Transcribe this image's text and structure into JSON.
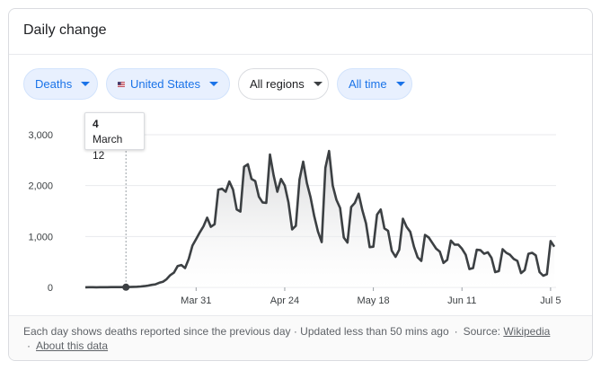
{
  "card": {
    "title": "Daily change"
  },
  "filters": {
    "metric": "Deaths",
    "country": "United States",
    "region": "All regions",
    "time": "All time"
  },
  "tooltip": {
    "value": "4",
    "date": "March 12"
  },
  "footer": {
    "description": "Each day shows deaths reported since the previous day · Updated less than 50 mins ago",
    "source_prefix": "Source:",
    "source_link": "Wikipedia",
    "about_link": "About this data",
    "separator": "·"
  },
  "colors": {
    "line": "#3c4043",
    "grid": "#e8eaed",
    "chip_blue": "#1a73e8"
  },
  "chart_data": {
    "type": "area",
    "title": "",
    "xlabel": "",
    "ylabel": "",
    "ylim": [
      0,
      3000
    ],
    "yticks": [
      0,
      1000,
      2000,
      3000
    ],
    "ytick_labels": [
      "0",
      "1,000",
      "2,000",
      "3,000"
    ],
    "x_start": "Mar 1",
    "xticks": [
      {
        "day": 30,
        "label": "Mar 31"
      },
      {
        "day": 54,
        "label": "Apr 24"
      },
      {
        "day": 78,
        "label": "May 18"
      },
      {
        "day": 102,
        "label": "Jun 11"
      },
      {
        "day": 126,
        "label": "Jul 5"
      }
    ],
    "highlight": {
      "day": 11,
      "value": 4,
      "label": "March 12"
    },
    "series": [
      {
        "x": [
          0,
          1,
          2,
          3,
          4,
          5,
          6,
          7,
          8,
          9,
          10,
          11,
          12,
          13,
          14,
          15,
          16,
          17,
          18,
          19,
          20,
          21,
          22,
          23,
          24,
          25,
          26,
          27,
          28,
          29,
          30,
          31,
          32,
          33,
          34,
          35,
          36,
          37,
          38,
          39,
          40,
          41,
          42,
          43,
          44,
          45,
          46,
          47,
          48,
          49,
          50,
          51,
          52,
          53,
          54,
          55,
          56,
          57,
          58,
          59,
          60,
          61,
          62,
          63,
          64,
          65,
          66,
          67,
          68,
          69,
          70,
          71,
          72,
          73,
          74,
          75,
          76,
          77,
          78,
          79,
          80,
          81,
          82,
          83,
          84,
          85,
          86,
          87,
          88,
          89,
          90,
          91,
          92,
          93,
          94,
          95,
          96,
          97,
          98,
          99,
          100,
          101,
          102,
          103,
          104,
          105,
          106,
          107,
          108,
          109,
          110,
          111,
          112,
          113,
          114,
          115,
          116,
          117,
          118,
          119,
          120,
          121,
          122,
          123,
          124,
          125,
          126,
          127
        ],
        "values": [
          2,
          3,
          3,
          2,
          4,
          3,
          4,
          5,
          6,
          5,
          6,
          4,
          7,
          10,
          12,
          18,
          25,
          35,
          50,
          60,
          90,
          110,
          160,
          240,
          290,
          420,
          440,
          380,
          560,
          820,
          950,
          1080,
          1200,
          1370,
          1190,
          1240,
          1920,
          1940,
          1880,
          2080,
          1920,
          1530,
          1490,
          2370,
          2420,
          2130,
          2090,
          1780,
          1670,
          1660,
          2610,
          2200,
          1880,
          2130,
          2000,
          1670,
          1140,
          1210,
          2120,
          2470,
          2050,
          1770,
          1400,
          1100,
          890,
          2350,
          2680,
          2000,
          1720,
          1560,
          980,
          880,
          1580,
          1660,
          1840,
          1520,
          1260,
          790,
          800,
          1430,
          1530,
          1160,
          1110,
          720,
          600,
          740,
          1350,
          1190,
          1090,
          800,
          590,
          520,
          1030,
          980,
          870,
          760,
          700,
          480,
          540,
          920,
          840,
          840,
          760,
          640,
          360,
          380,
          740,
          730,
          660,
          690,
          580,
          300,
          320,
          750,
          680,
          640,
          560,
          520,
          280,
          340,
          660,
          680,
          630,
          300,
          230,
          260,
          910,
          800
        ]
      }
    ]
  }
}
